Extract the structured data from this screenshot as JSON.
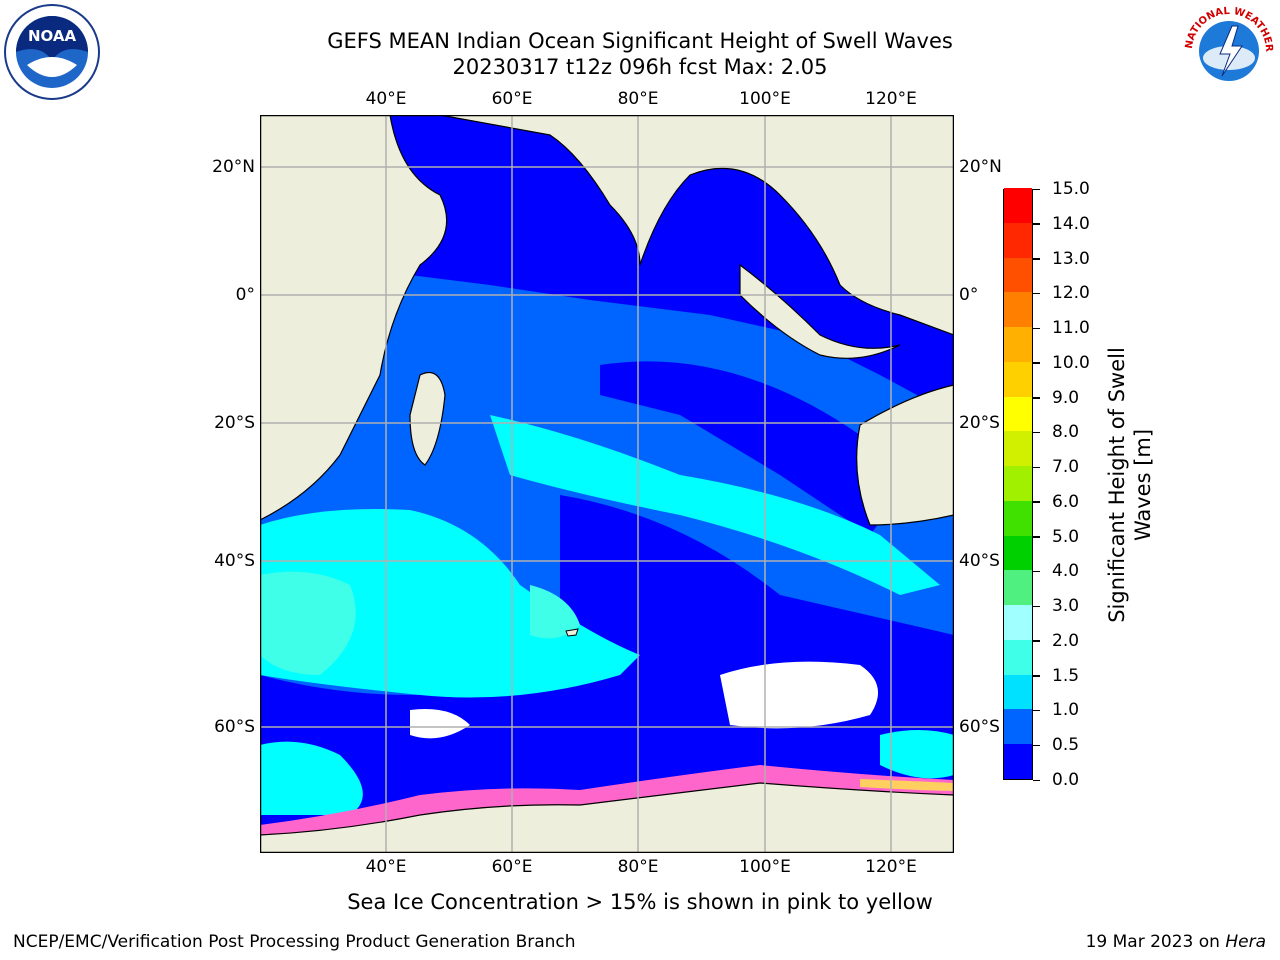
{
  "title": {
    "line1": "GEFS MEAN Indian Ocean Significant Height of Swell Waves",
    "line2": "20230317 t12z 096h fcst   Max: 2.05"
  },
  "axes": {
    "lon_ticks": [
      "40°E",
      "60°E",
      "80°E",
      "100°E",
      "120°E"
    ],
    "lat_ticks": [
      "20°N",
      "0°",
      "20°S",
      "40°S",
      "60°S"
    ]
  },
  "colorbar": {
    "label_line1": "Significant Height of Swell",
    "label_line2": "Waves [m]",
    "ticks": [
      "0.0",
      "0.5",
      "1.0",
      "1.5",
      "2.0",
      "3.0",
      "4.0",
      "5.0",
      "6.0",
      "7.0",
      "8.0",
      "9.0",
      "10.0",
      "11.0",
      "12.0",
      "13.0",
      "14.0",
      "15.0"
    ],
    "colors": [
      "#0000ff",
      "#0064ff",
      "#00e0ff",
      "#40ffe8",
      "#a0ffff",
      "#50f080",
      "#00d000",
      "#40e000",
      "#a0f000",
      "#d0f000",
      "#ffff00",
      "#ffd000",
      "#ffb000",
      "#ff8000",
      "#ff5000",
      "#ff2800",
      "#ff0000"
    ]
  },
  "map_colors": {
    "land": "#eeeedd",
    "deep_blue": "#0000ff",
    "mid_blue": "#0064ff",
    "cyan": "#00ffff",
    "light_cyan": "#40ffe8",
    "ice_white": "#ffffff",
    "sea_ice_pink": "#ff66cc",
    "sea_ice_yellow": "#ffd060",
    "grid": "#b0b0b0"
  },
  "note": "Sea Ice Concentration > 15% is shown in pink to yellow",
  "footer": {
    "left": "NCEP/EMC/Verification Post Processing Product Generation Branch",
    "right_date": "19 Mar 2023 on ",
    "right_host": "Hera"
  },
  "logos": {
    "noaa": "NOAA",
    "nws": "NATIONAL WEATHER SERVICE"
  }
}
